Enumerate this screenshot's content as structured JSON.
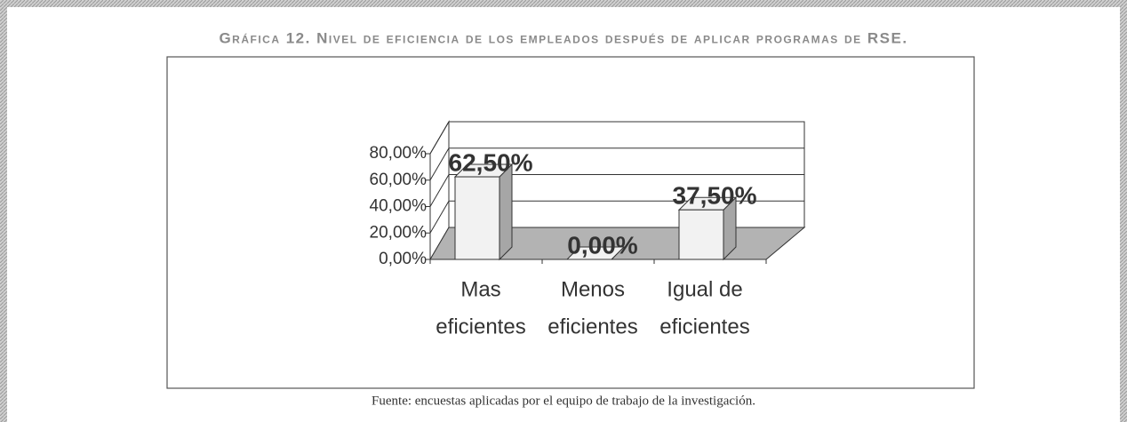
{
  "chart_data": {
    "type": "bar3d",
    "title": "Gráfica 12. Nivel de eficiencia de los empleados después de aplicar programas de RSE.",
    "source": "Fuente: encuestas aplicadas por el equipo de trabajo de la investigación.",
    "categories": [
      [
        "Mas",
        "eficientes"
      ],
      [
        "Menos",
        "eficientes"
      ],
      [
        "Igual de",
        "eficientes"
      ]
    ],
    "values": [
      62.5,
      0,
      37.5
    ],
    "value_labels": [
      "62,50%",
      "0,00%",
      "37,50%"
    ],
    "ylim": [
      0,
      80
    ],
    "yticks": [
      {
        "value": 0,
        "label": "0,00%"
      },
      {
        "value": 20,
        "label": "20,00%"
      },
      {
        "value": 40,
        "label": "40,00%"
      },
      {
        "value": 60,
        "label": "60,00%"
      },
      {
        "value": 80,
        "label": "80,00%"
      }
    ],
    "color": "#f2f2f2",
    "side_color": "#a6a6a6",
    "floor_color": "#b3b3b3",
    "grid": true
  }
}
